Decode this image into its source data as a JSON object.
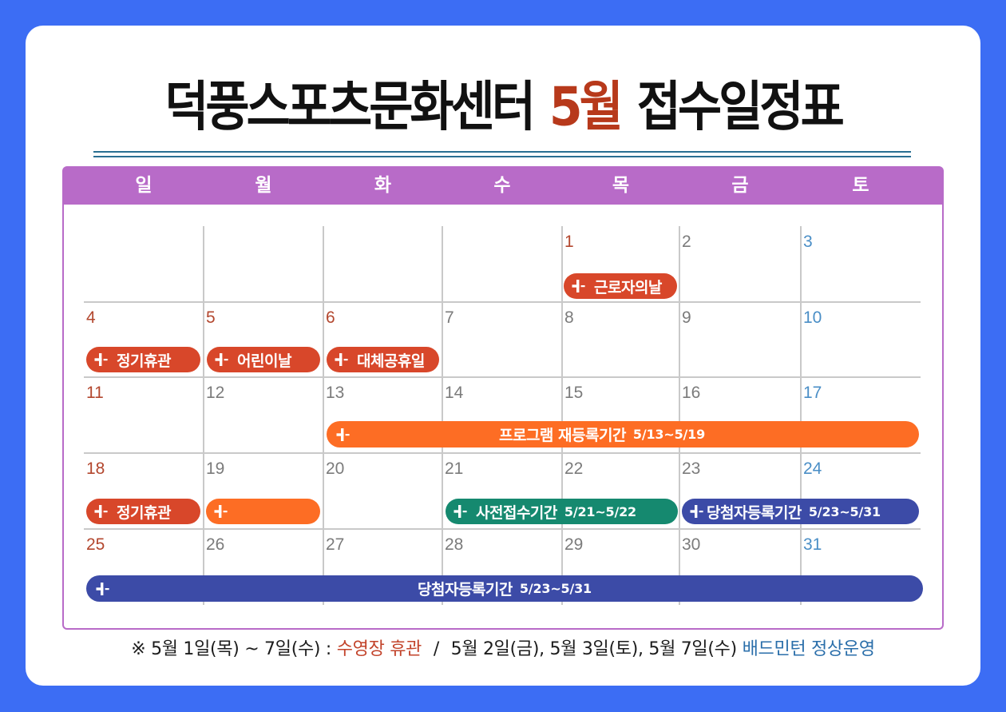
{
  "title": {
    "center_name": "덕풍스포츠문화센터",
    "month": "5월",
    "subtitle": "접수일정표"
  },
  "calendar": {
    "weekdays": [
      "일",
      "월",
      "화",
      "수",
      "목",
      "금",
      "토"
    ],
    "weeks": [
      {
        "days": [
          "1",
          "2",
          "3"
        ],
        "events": [
          {
            "label": "근로자의날",
            "icon": "plus-icon"
          }
        ]
      },
      {
        "days": [
          "4",
          "5",
          "6",
          "7",
          "8",
          "9",
          "10"
        ],
        "events": [
          {
            "label": "정기휴관",
            "icon": "plus-icon"
          },
          {
            "label": "어린이날",
            "icon": "plus-icon"
          },
          {
            "label": "대체공휴일",
            "icon": "plus-icon"
          }
        ]
      },
      {
        "days": [
          "11",
          "12",
          "13",
          "14",
          "15",
          "16",
          "17"
        ],
        "events": [
          {
            "label": "프로그램 재등록기간",
            "period": "5/13~5/19",
            "icon": "plus-icon"
          }
        ]
      },
      {
        "days": [
          "18",
          "19",
          "20",
          "21",
          "22",
          "23",
          "24"
        ],
        "events": [
          {
            "label": "정기휴관",
            "icon": "plus-icon"
          },
          {
            "icon": "plus-icon"
          },
          {
            "label": "사전접수기간",
            "period": "5/21~5/22",
            "icon": "plus-icon"
          },
          {
            "label": "당첨자등록기간",
            "period": "5/23~5/31",
            "icon": "plus-icon"
          }
        ]
      },
      {
        "days": [
          "25",
          "26",
          "27",
          "28",
          "29",
          "30",
          "31"
        ],
        "events": [
          {
            "label": "당첨자등록기간",
            "period": "5/23~5/31",
            "icon": "plus-icon"
          }
        ]
      }
    ]
  },
  "footnote": {
    "mark": "※",
    "pool_dates": "5월 1일(목) ~ 7일(수) :",
    "pool_status": "수영장 휴관",
    "separator": "/",
    "badminton_dates": "5월 2일(금), 5월 3일(토), 5월 7일(수)",
    "badminton_status": "배드민턴 정상운영"
  },
  "colors": {
    "page_bg": "#3c6df4",
    "card_bg": "#ffffff",
    "title_text": "#111111",
    "title_accent": "#b7391b",
    "rule": "#2a6f92",
    "header_bg": "#b86bc8",
    "grid_line": "#c9c9c9",
    "holiday_number": "#b3472e",
    "saturday_number": "#4a8ec6",
    "weekday_number": "#7b7b7b",
    "event_red": "#d8472a",
    "event_orange": "#fd6d24",
    "event_teal": "#15896f",
    "event_navy": "#3c4ba7",
    "note_red": "#c2432a",
    "note_blue": "#2a6eaa"
  }
}
